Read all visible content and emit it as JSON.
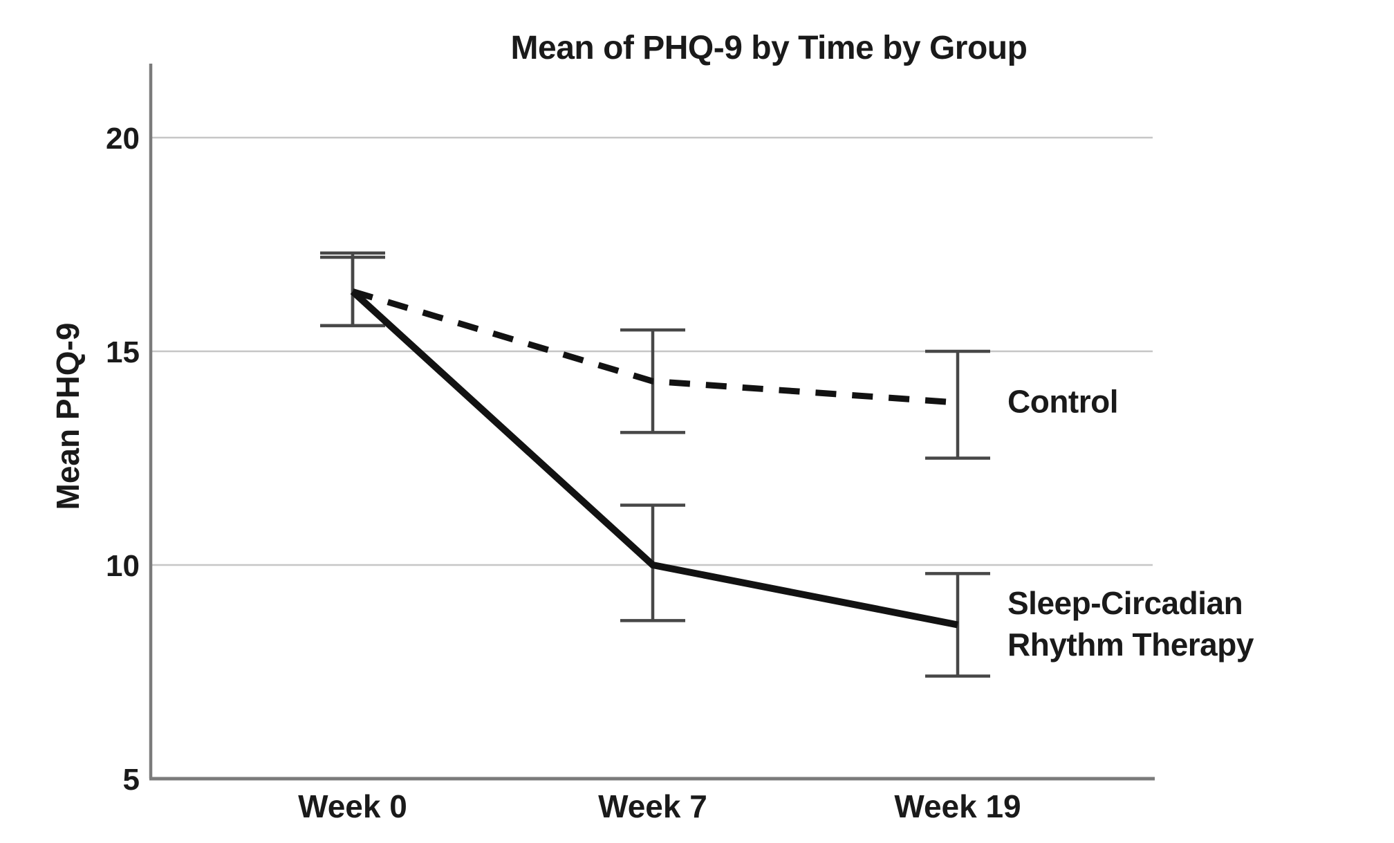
{
  "figure": {
    "background_color": "#ffffff",
    "text_color": "#1a1a1a"
  },
  "chart_data": {
    "type": "line",
    "title": "Mean of PHQ-9 by Time by Group",
    "ylabel": "Mean PHQ-9",
    "xlabel": "",
    "categories": [
      "Week 0",
      "Week 7",
      "Week 19"
    ],
    "yticks": [
      5,
      10,
      15,
      20
    ],
    "ylim": [
      5,
      21.7
    ],
    "grid": "horizontal-only",
    "legend_position": "labels-right-of-line-ends",
    "error_bars": true,
    "series": [
      {
        "name": "Control",
        "label": "Control",
        "line_style": "dashed",
        "color": "#121212",
        "values": [
          16.4,
          14.3,
          13.8
        ],
        "ci_low": [
          15.6,
          13.1,
          12.5
        ],
        "ci_high": [
          17.2,
          15.5,
          15.0
        ]
      },
      {
        "name": "Sleep-Circadian Rhythm Therapy",
        "label": "Sleep-Circadian\nRhythm Therapy",
        "line_style": "solid",
        "color": "#121212",
        "values": [
          16.4,
          10.0,
          8.6
        ],
        "ci_low": [
          15.6,
          8.7,
          7.4
        ],
        "ci_high": [
          17.3,
          11.4,
          9.8
        ]
      }
    ],
    "colors": {
      "line": "#121212",
      "error_bar": "#474747",
      "gridline": "#c6c6c6",
      "axis": "#7b7b7b"
    }
  }
}
